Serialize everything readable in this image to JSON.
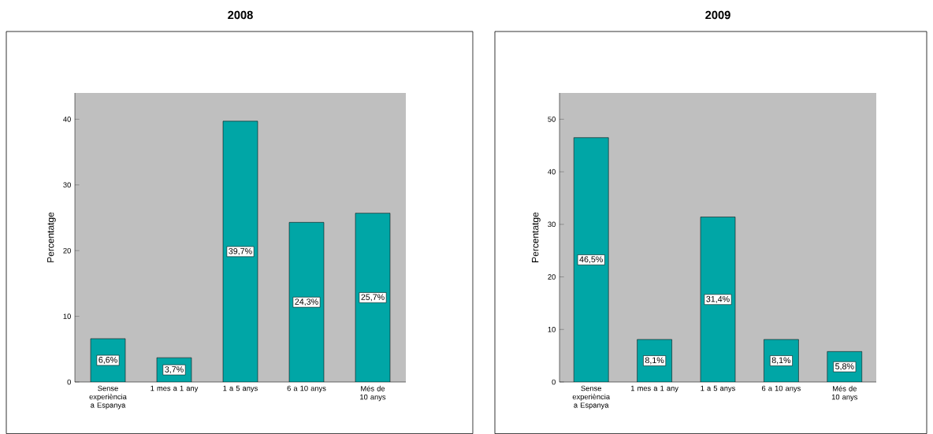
{
  "chart_data": [
    {
      "type": "bar",
      "title": "2008",
      "ylabel": "Percentatge",
      "categories": [
        "Sense experiència a Espanya",
        "1 mes a 1 any",
        "1 a 5 anys",
        "6 a 10 anys",
        "Més de 10 anys"
      ],
      "values": [
        6.6,
        3.7,
        39.7,
        24.3,
        25.7
      ],
      "value_labels": [
        "6,6%",
        "3,7%",
        "39,7%",
        "24,3%",
        "25,7%"
      ],
      "color": "#00a6a6",
      "ylim": [
        0,
        44
      ],
      "yticks": [
        0,
        10,
        20,
        30,
        40
      ]
    },
    {
      "type": "bar",
      "title": "2009",
      "ylabel": "Percentatge",
      "categories": [
        "Sense experiència a Espanya",
        "1 mes a 1 any",
        "1 a 5 anys",
        "6 a 10 anys",
        "Més de 10 anys"
      ],
      "values": [
        46.5,
        8.1,
        31.4,
        8.1,
        5.8
      ],
      "value_labels": [
        "46,5%",
        "8,1%",
        "31,4%",
        "8,1%",
        "5,8%"
      ],
      "color": "#00a6a6",
      "ylim": [
        0,
        55
      ],
      "yticks": [
        0,
        10,
        20,
        30,
        40,
        50
      ]
    }
  ]
}
